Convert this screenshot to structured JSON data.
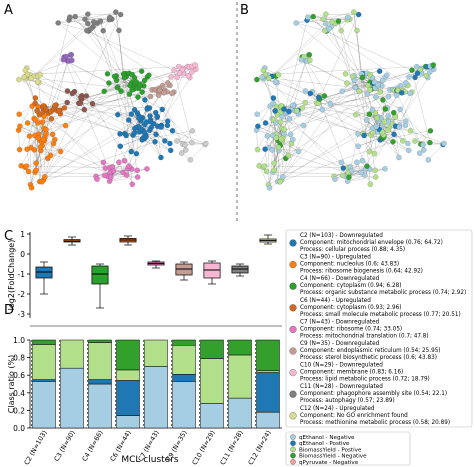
{
  "panels": {
    "a": {
      "label": "A"
    },
    "b": {
      "label": "B"
    },
    "c": {
      "label": "C"
    },
    "d": {
      "label": "D"
    }
  },
  "chart_data": [
    {
      "type": "box",
      "ylabel": "log2(FoldChange)",
      "ylim": [
        -3.2,
        1.1
      ],
      "yticks": [
        "-3",
        "-2",
        "-1",
        "0",
        "1"
      ],
      "categories": [
        "C2 (N=103)",
        "C3 (N=90)",
        "C4 (N=66)",
        "C6 (N=44)",
        "C7 (N=43)",
        "C9 (N=35)",
        "C10 (N=29)",
        "C11 (N=28)",
        "C12 (N=24)"
      ],
      "colors": [
        "#1f77b4",
        "#ff7f0e",
        "#2ca02c",
        "#d2691e",
        "#e377c2",
        "#c49c94",
        "#f7b6d2",
        "#7f7f7f",
        "#dbdb8d"
      ],
      "boxes": [
        {
          "min": -2.0,
          "q1": -1.2,
          "median": -0.9,
          "q3": -0.65,
          "max": -0.4
        },
        {
          "min": 0.45,
          "q1": 0.6,
          "median": 0.65,
          "q3": 0.72,
          "max": 0.85
        },
        {
          "min": -2.7,
          "q1": -1.5,
          "median": -1.0,
          "q3": -0.6,
          "max": -0.5
        },
        {
          "min": 0.45,
          "q1": 0.6,
          "median": 0.7,
          "q3": 0.78,
          "max": 0.9
        },
        {
          "min": -0.7,
          "q1": -0.55,
          "median": -0.47,
          "q3": -0.4,
          "max": -0.35
        },
        {
          "min": -1.3,
          "q1": -1.05,
          "median": -0.75,
          "q3": -0.5,
          "max": -0.4
        },
        {
          "min": -1.5,
          "q1": -1.2,
          "median": -0.8,
          "q3": -0.45,
          "max": -0.35
        },
        {
          "min": -1.1,
          "q1": -0.95,
          "median": -0.75,
          "q3": -0.6,
          "max": -0.5
        },
        {
          "min": 0.5,
          "q1": 0.6,
          "median": 0.68,
          "q3": 0.75,
          "max": 0.95
        }
      ]
    },
    {
      "type": "bar",
      "stacked": true,
      "ylabel": "Class ratio (%)",
      "xlabel": "MCL clusters",
      "ylim": [
        0,
        1
      ],
      "yticks": [
        "0.0",
        "0.2",
        "0.4",
        "0.6",
        "0.8",
        "1.0"
      ],
      "categories": [
        "C2 (N=103)",
        "C3 (N=90)",
        "C4 (N=66)",
        "C6 (N=44)",
        "C7 (N=43)",
        "C9 (N=35)",
        "C10 (N=29)",
        "C11 (N=28)",
        "C12 (N=24)"
      ],
      "series": [
        {
          "name": "qEthanol - Negative",
          "color": "#a6cee3",
          "values": [
            0.53,
            0.68,
            0.5,
            0.14,
            0.7,
            0.53,
            0.28,
            0.34,
            0.18
          ]
        },
        {
          "name": "qEthanol - Postive",
          "color": "#1f78b4",
          "values": [
            0.02,
            0.0,
            0.05,
            0.4,
            0.0,
            0.08,
            0.0,
            0.0,
            0.45
          ]
        },
        {
          "name": "BiomassYield - Postive",
          "color": "#b2df8a",
          "values": [
            0.4,
            0.32,
            0.42,
            0.12,
            0.3,
            0.33,
            0.51,
            0.49,
            0.02
          ]
        },
        {
          "name": "BiomassYield - Negative",
          "color": "#33a02c",
          "values": [
            0.05,
            0.0,
            0.03,
            0.34,
            0.0,
            0.06,
            0.21,
            0.17,
            0.35
          ]
        },
        {
          "name": "qPyruvate - Negative",
          "color": "#fb9a99",
          "values": [
            0.0,
            0.0,
            0.0,
            0.0,
            0.0,
            0.0,
            0.0,
            0.0,
            0.0
          ]
        }
      ]
    }
  ],
  "legend_top": [
    {
      "color": "#1f77b4",
      "lines": [
        "C2 (N=103) - Downregulated",
        "Component: mitochondrial envelope (0.76; 64.72)",
        "Process: cellular process (0.88; 4.35)"
      ]
    },
    {
      "color": "#ff7f0e",
      "lines": [
        "C3 (N=90) - Upregulated",
        "Component: nucleolus (0.6; 43.83)",
        "Process: ribosome biogenesis (0.64; 42.92)"
      ]
    },
    {
      "color": "#2ca02c",
      "lines": [
        "C4 (N=66) - Downregulated",
        "Component: cytoplasm (0.94; 6.28)",
        "Process: organic substance metabolic process (0.74; 2.92)"
      ]
    },
    {
      "color": "#d2691e",
      "lines": [
        "C6 (N=44) - Upregulated",
        "Component: cytoplasm (0.93; 2.96)",
        "Process: small molecule metabolic process (0.77; 20.51)"
      ]
    },
    {
      "color": "#e377c2",
      "lines": [
        "C7 (N=43) - Downregulated",
        "Component: ribosome (0.74; 33.05)",
        "Process: mitochondrial translation (0.7; 47.8)"
      ]
    },
    {
      "color": "#c49c94",
      "lines": [
        "C9 (N=35) - Downregulated",
        "Component: endoplasmic reticulum (0.54; 25.95)",
        "Process: sterol biosynthetic process (0.6; 43.83)"
      ]
    },
    {
      "color": "#f7b6d2",
      "lines": [
        "C10 (N=29) - Downregulated",
        "Component: membrane (0.83; 6.16)",
        "Process: lipid metabolic process (0.72; 18.79)"
      ]
    },
    {
      "color": "#7f7f7f",
      "lines": [
        "C11 (N=28) - Downregulated",
        "Component: phagophore assembly site (0.54; 22.1)",
        "Process: autophagy (0.57; 23.89)"
      ]
    },
    {
      "color": "#dbdb8d",
      "lines": [
        "C12 (N=24) - Upregulated",
        "Component: No GO enrichment found",
        "Process: methionine metabolic process (0.58; 20.89)"
      ]
    }
  ]
}
